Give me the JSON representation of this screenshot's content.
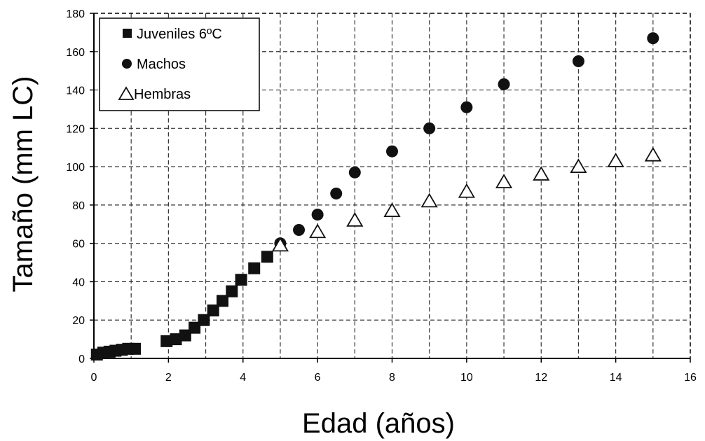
{
  "chart_data": {
    "type": "scatter",
    "xlabel": "Edad (años)",
    "ylabel": "Tamaño (mm LC)",
    "xlim": [
      0,
      16
    ],
    "ylim": [
      0,
      180
    ],
    "xticks": [
      "0",
      "2",
      "4",
      "6",
      "8",
      "10",
      "12",
      "14",
      "16"
    ],
    "yticks": [
      "0",
      "20",
      "40",
      "60",
      "80",
      "100",
      "120",
      "140",
      "160",
      "180"
    ],
    "grid": true,
    "legend_position": "top-left",
    "series": [
      {
        "name": "Juveniles 6ºC",
        "marker": "square",
        "color": "#111111",
        "x": [
          0.08,
          0.25,
          0.42,
          0.58,
          0.75,
          0.92,
          1.1,
          1.95,
          2.2,
          2.45,
          2.7,
          2.95,
          3.2,
          3.45,
          3.7,
          3.95,
          4.3,
          4.65
        ],
        "y": [
          2,
          3,
          3.5,
          4,
          4.5,
          5,
          5,
          9,
          10,
          12,
          16,
          20,
          25,
          30,
          35,
          41,
          47,
          53
        ]
      },
      {
        "name": "Machos",
        "marker": "circle",
        "color": "#111111",
        "x": [
          5,
          5.5,
          6,
          6.5,
          7,
          8,
          9,
          10,
          11,
          13,
          15
        ],
        "y": [
          60,
          67,
          75,
          86,
          97,
          108,
          120,
          131,
          143,
          155,
          167
        ]
      },
      {
        "name": "Hembras",
        "marker": "triangle-open",
        "color": "#111111",
        "x": [
          5,
          6,
          7,
          8,
          9,
          10,
          11,
          12,
          13,
          14,
          15
        ],
        "y": [
          59,
          66,
          72,
          77,
          82,
          87,
          92,
          96,
          100,
          103,
          106
        ]
      }
    ]
  }
}
